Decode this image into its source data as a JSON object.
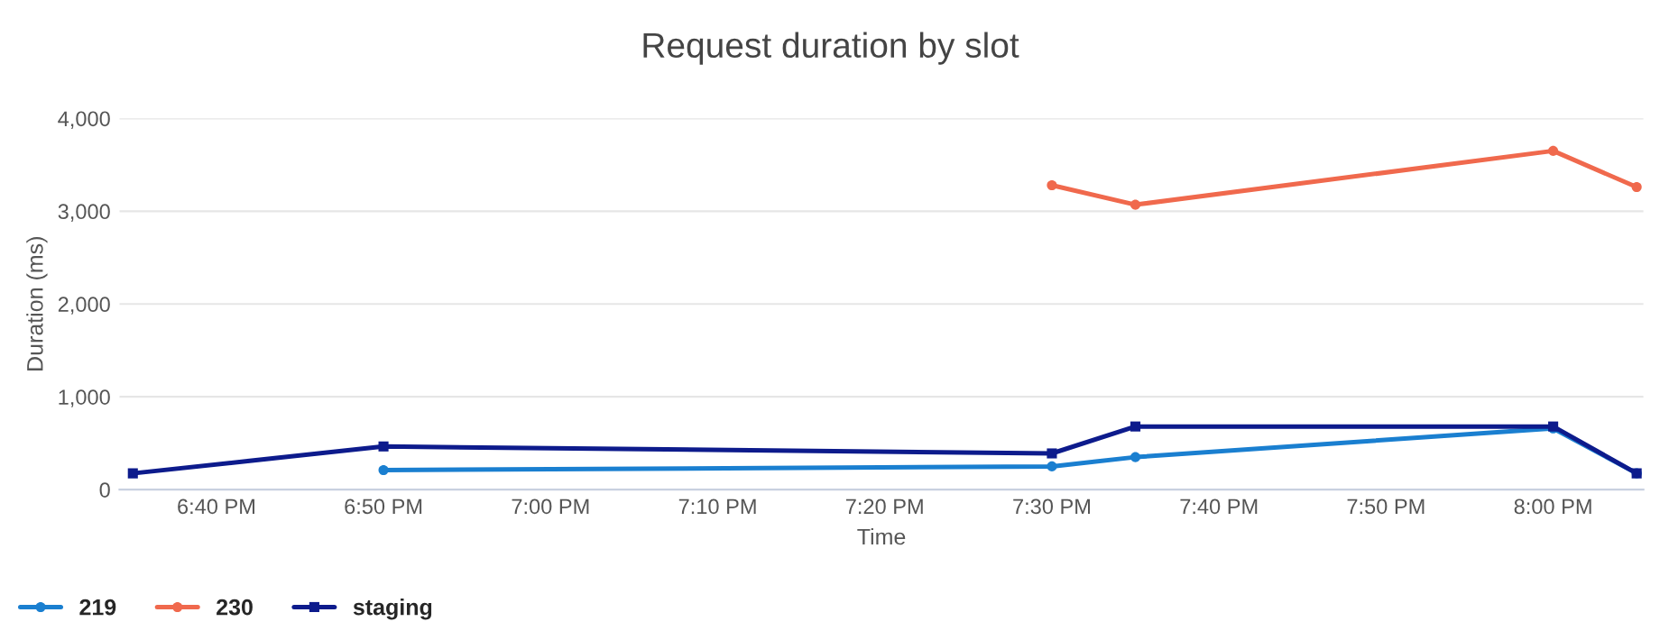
{
  "chart_data": {
    "type": "line",
    "title": "Request duration by slot",
    "xlabel": "Time",
    "ylabel": "Duration (ms)",
    "series": [
      {
        "name": "219",
        "color": "#1a7fd0",
        "marker": "circle",
        "x": [
          18.8333,
          19.5,
          19.5833,
          20.0,
          20.0833
        ],
        "values": [
          210,
          250,
          350,
          660,
          175
        ]
      },
      {
        "name": "230",
        "color": "#f0694d",
        "marker": "circle",
        "x": [
          19.5,
          19.5833,
          20.0,
          20.0833
        ],
        "values": [
          3280,
          3070,
          3650,
          3260
        ]
      },
      {
        "name": "staging",
        "color": "#0d1b8c",
        "marker": "square",
        "x": [
          18.5833,
          18.8333,
          19.5,
          19.5833,
          20.0,
          20.0833
        ],
        "values": [
          175,
          465,
          390,
          680,
          680,
          175
        ]
      }
    ],
    "xlim": [
      18.57,
      20.09
    ],
    "ylim": [
      0,
      4000
    ],
    "xticks": [
      {
        "value": 18.6667,
        "label": "6:40 PM"
      },
      {
        "value": 18.8333,
        "label": "6:50 PM"
      },
      {
        "value": 19.0,
        "label": "7:00 PM"
      },
      {
        "value": 19.1667,
        "label": "7:10 PM"
      },
      {
        "value": 19.3333,
        "label": "7:20 PM"
      },
      {
        "value": 19.5,
        "label": "7:30 PM"
      },
      {
        "value": 19.6667,
        "label": "7:40 PM"
      },
      {
        "value": 19.8333,
        "label": "7:50 PM"
      },
      {
        "value": 20.0,
        "label": "8:00 PM"
      }
    ],
    "yticks": [
      0,
      {
        "value": 1000,
        "label": "1,000"
      },
      {
        "value": 2000,
        "label": "2,000"
      },
      {
        "value": 3000,
        "label": "3,000"
      },
      {
        "value": 4000,
        "label": "4,000"
      }
    ],
    "grid": "y",
    "legend": "bottom left",
    "line_style": "solid"
  }
}
